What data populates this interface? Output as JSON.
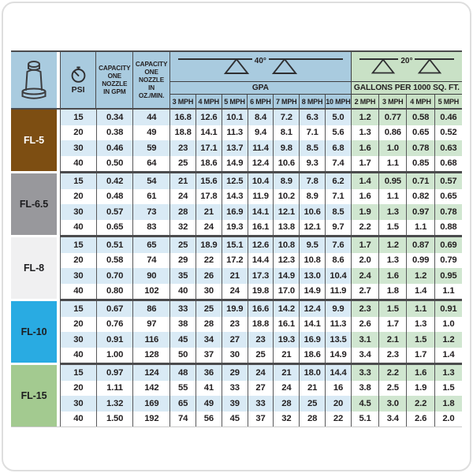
{
  "table": {
    "header": {
      "psi_label": "PSI",
      "capacity_gpm_label": "CAPACITY\nONE\nNOZZLE\nIN GPM",
      "capacity_oz_label": "CAPACITY\nONE\nNOZZLE\nIN\nOZ./MIN.",
      "band_40": {
        "angle_label": "40°",
        "sub_label": "GPA",
        "speed_columns": [
          "3 MPH",
          "4 MPH",
          "5 MPH",
          "6 MPH",
          "7 MPH",
          "8 MPH",
          "10 MPH"
        ]
      },
      "band_20": {
        "angle_label": "20°",
        "sub_label": "GALLONS PER 1000 SQ. FT.",
        "speed_columns": [
          "2 MPH",
          "3 MPH",
          "4 MPH",
          "5 MPH"
        ]
      }
    },
    "groups": [
      {
        "label": "FL-5",
        "color": "#7d4e12",
        "label_color": "#ffffff",
        "rows": [
          {
            "psi": "15",
            "gpm": "0.34",
            "oz": "44",
            "gpa": [
              "16.8",
              "12.6",
              "10.1",
              "8.4",
              "7.2",
              "6.3",
              "5.0"
            ],
            "g1000": [
              "1.2",
              "0.77",
              "0.58",
              "0.46"
            ]
          },
          {
            "psi": "20",
            "gpm": "0.38",
            "oz": "49",
            "gpa": [
              "18.8",
              "14.1",
              "11.3",
              "9.4",
              "8.1",
              "7.1",
              "5.6"
            ],
            "g1000": [
              "1.3",
              "0.86",
              "0.65",
              "0.52"
            ]
          },
          {
            "psi": "30",
            "gpm": "0.46",
            "oz": "59",
            "gpa": [
              "23",
              "17.1",
              "13.7",
              "11.4",
              "9.8",
              "8.5",
              "6.8"
            ],
            "g1000": [
              "1.6",
              "1.0",
              "0.78",
              "0.63"
            ]
          },
          {
            "psi": "40",
            "gpm": "0.50",
            "oz": "64",
            "gpa": [
              "25",
              "18.6",
              "14.9",
              "12.4",
              "10.6",
              "9.3",
              "7.4"
            ],
            "g1000": [
              "1.7",
              "1.1",
              "0.85",
              "0.68"
            ]
          }
        ]
      },
      {
        "label": "FL-6.5",
        "color": "#98989c",
        "label_color": "#1d1d1f",
        "rows": [
          {
            "psi": "15",
            "gpm": "0.42",
            "oz": "54",
            "gpa": [
              "21",
              "15.6",
              "12.5",
              "10.4",
              "8.9",
              "7.8",
              "6.2"
            ],
            "g1000": [
              "1.4",
              "0.95",
              "0.71",
              "0.57"
            ]
          },
          {
            "psi": "20",
            "gpm": "0.48",
            "oz": "61",
            "gpa": [
              "24",
              "17.8",
              "14.3",
              "11.9",
              "10.2",
              "8.9",
              "7.1"
            ],
            "g1000": [
              "1.6",
              "1.1",
              "0.82",
              "0.65"
            ]
          },
          {
            "psi": "30",
            "gpm": "0.57",
            "oz": "73",
            "gpa": [
              "28",
              "21",
              "16.9",
              "14.1",
              "12.1",
              "10.6",
              "8.5"
            ],
            "g1000": [
              "1.9",
              "1.3",
              "0.97",
              "0.78"
            ]
          },
          {
            "psi": "40",
            "gpm": "0.65",
            "oz": "83",
            "gpa": [
              "32",
              "24",
              "19.3",
              "16.1",
              "13.8",
              "12.1",
              "9.7"
            ],
            "g1000": [
              "2.2",
              "1.5",
              "1.1",
              "0.88"
            ]
          }
        ]
      },
      {
        "label": "FL-8",
        "color": "#f0f0f1",
        "label_color": "#1d1d1f",
        "rows": [
          {
            "psi": "15",
            "gpm": "0.51",
            "oz": "65",
            "gpa": [
              "25",
              "18.9",
              "15.1",
              "12.6",
              "10.8",
              "9.5",
              "7.6"
            ],
            "g1000": [
              "1.7",
              "1.2",
              "0.87",
              "0.69"
            ]
          },
          {
            "psi": "20",
            "gpm": "0.58",
            "oz": "74",
            "gpa": [
              "29",
              "22",
              "17.2",
              "14.4",
              "12.3",
              "10.8",
              "8.6"
            ],
            "g1000": [
              "2.0",
              "1.3",
              "0.99",
              "0.79"
            ]
          },
          {
            "psi": "30",
            "gpm": "0.70",
            "oz": "90",
            "gpa": [
              "35",
              "26",
              "21",
              "17.3",
              "14.9",
              "13.0",
              "10.4"
            ],
            "g1000": [
              "2.4",
              "1.6",
              "1.2",
              "0.95"
            ]
          },
          {
            "psi": "40",
            "gpm": "0.80",
            "oz": "102",
            "gpa": [
              "40",
              "30",
              "24",
              "19.8",
              "17.0",
              "14.9",
              "11.9"
            ],
            "g1000": [
              "2.7",
              "1.8",
              "1.4",
              "1.1"
            ]
          }
        ]
      },
      {
        "label": "FL-10",
        "color": "#29abe2",
        "label_color": "#1d1d1f",
        "rows": [
          {
            "psi": "15",
            "gpm": "0.67",
            "oz": "86",
            "gpa": [
              "33",
              "25",
              "19.9",
              "16.6",
              "14.2",
              "12.4",
              "9.9"
            ],
            "g1000": [
              "2.3",
              "1.5",
              "1.1",
              "0.91"
            ]
          },
          {
            "psi": "20",
            "gpm": "0.76",
            "oz": "97",
            "gpa": [
              "38",
              "28",
              "23",
              "18.8",
              "16.1",
              "14.1",
              "11.3"
            ],
            "g1000": [
              "2.6",
              "1.7",
              "1.3",
              "1.0"
            ]
          },
          {
            "psi": "30",
            "gpm": "0.91",
            "oz": "116",
            "gpa": [
              "45",
              "34",
              "27",
              "23",
              "19.3",
              "16.9",
              "13.5"
            ],
            "g1000": [
              "3.1",
              "2.1",
              "1.5",
              "1.2"
            ]
          },
          {
            "psi": "40",
            "gpm": "1.00",
            "oz": "128",
            "gpa": [
              "50",
              "37",
              "30",
              "25",
              "21",
              "18.6",
              "14.9"
            ],
            "g1000": [
              "3.4",
              "2.3",
              "1.7",
              "1.4"
            ]
          }
        ]
      },
      {
        "label": "FL-15",
        "color": "#a3ca90",
        "label_color": "#1d1d1f",
        "rows": [
          {
            "psi": "15",
            "gpm": "0.97",
            "oz": "124",
            "gpa": [
              "48",
              "36",
              "29",
              "24",
              "21",
              "18.0",
              "14.4"
            ],
            "g1000": [
              "3.3",
              "2.2",
              "1.6",
              "1.3"
            ]
          },
          {
            "psi": "20",
            "gpm": "1.11",
            "oz": "142",
            "gpa": [
              "55",
              "41",
              "33",
              "27",
              "24",
              "21",
              "16"
            ],
            "g1000": [
              "3.8",
              "2.5",
              "1.9",
              "1.5"
            ]
          },
          {
            "psi": "30",
            "gpm": "1.32",
            "oz": "169",
            "gpa": [
              "65",
              "49",
              "39",
              "33",
              "28",
              "25",
              "20"
            ],
            "g1000": [
              "4.5",
              "3.0",
              "2.2",
              "1.8"
            ]
          },
          {
            "psi": "40",
            "gpm": "1.50",
            "oz": "192",
            "gpa": [
              "74",
              "56",
              "45",
              "37",
              "32",
              "28",
              "22"
            ],
            "g1000": [
              "5.1",
              "3.4",
              "2.6",
              "2.0"
            ]
          }
        ]
      }
    ]
  },
  "icons": {
    "nozzle": "spray-nozzle-outline",
    "gauge": "pressure-gauge",
    "spray_fan": "boom-spray-fan-triangles"
  },
  "colors": {
    "header_blue": "#a9cbdf",
    "header_green": "#c9e1c6",
    "stripe_blue": "#d9eaf5",
    "stripe_green": "#d0e6d0",
    "line_dark": "#4b4b4d",
    "text": "#231f20"
  }
}
